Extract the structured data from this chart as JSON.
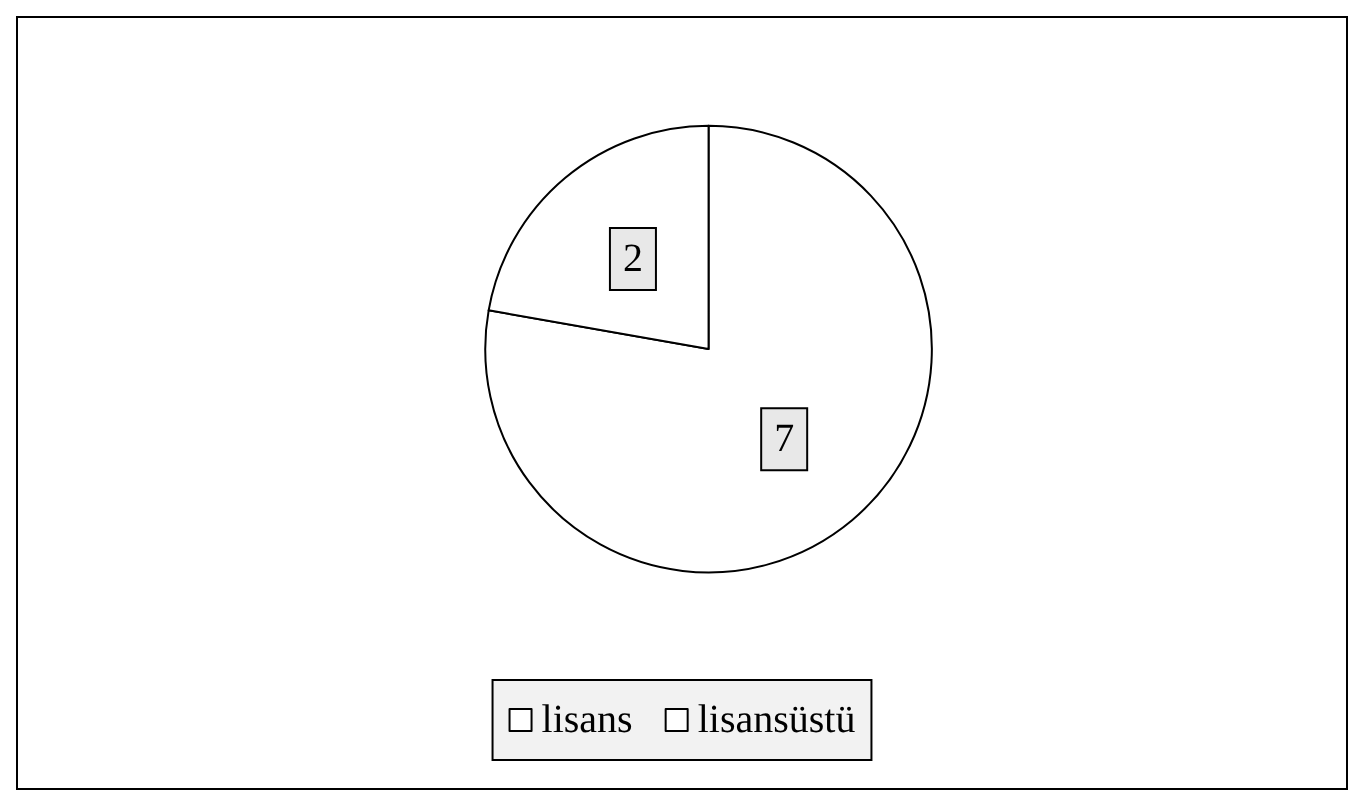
{
  "chart_data": {
    "type": "pie",
    "categories": [
      "lisans",
      "lisansüstü"
    ],
    "values": [
      7,
      2
    ],
    "colors": [
      "#ffffff",
      "#ffffff"
    ],
    "data_labels": true,
    "legend": "bottom"
  }
}
